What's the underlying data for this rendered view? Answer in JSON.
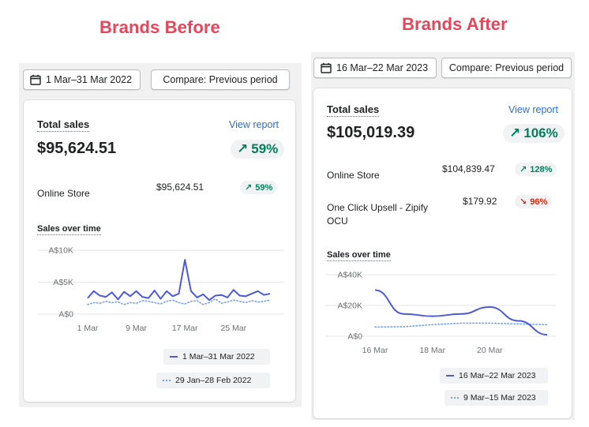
{
  "before": {
    "heading": "Brands Before",
    "date_range": "1 Mar–31 Mar 2022",
    "compare": "Compare: Previous period",
    "total_sales_label": "Total sales",
    "view_report": "View report",
    "total_amount": "$95,624.51",
    "total_change": "59%",
    "rows": [
      {
        "name": "Online Store",
        "value": "$95,624.51",
        "change": "59%",
        "direction": "up"
      }
    ],
    "chart_title": "Sales over time",
    "y_ticks": [
      "A$10K",
      "A$5K",
      "A$0"
    ],
    "x_ticks": [
      "1 Mar",
      "9 Mar",
      "17 Mar",
      "25 Mar"
    ],
    "legend_current": "1 Mar–31 Mar 2022",
    "legend_previous": "29 Jan–28 Feb 2022"
  },
  "after": {
    "heading": "Brands After",
    "date_range": "16 Mar–22 Mar 2023",
    "compare": "Compare: Previous period",
    "total_sales_label": "Total sales",
    "view_report": "View report",
    "total_amount": "$105,019.39",
    "total_change": "106%",
    "rows": [
      {
        "name": "Online Store",
        "value": "$104,839.47",
        "change": "128%",
        "direction": "up"
      },
      {
        "name": "One Click Upsell - Zipify OCU",
        "value": "$179.92",
        "change": "96%",
        "direction": "down"
      }
    ],
    "chart_title": "Sales over time",
    "y_ticks": [
      "A$40K",
      "A$20K",
      "A$0"
    ],
    "x_ticks": [
      "16 Mar",
      "18 Mar",
      "20 Mar"
    ],
    "legend_current": "16 Mar–22 Mar 2023",
    "legend_previous": "9 Mar–15 Mar 2023"
  },
  "chart_data": [
    {
      "type": "line",
      "title": "Sales over time",
      "xlabel": "",
      "ylabel": "",
      "ylim": [
        0,
        10000
      ],
      "x_tick_labels": [
        "1 Mar",
        "9 Mar",
        "17 Mar",
        "25 Mar"
      ],
      "x": [
        "1 Mar",
        "2 Mar",
        "3 Mar",
        "4 Mar",
        "5 Mar",
        "6 Mar",
        "7 Mar",
        "8 Mar",
        "9 Mar",
        "10 Mar",
        "11 Mar",
        "12 Mar",
        "13 Mar",
        "14 Mar",
        "15 Mar",
        "16 Mar",
        "17 Mar",
        "18 Mar",
        "19 Mar",
        "20 Mar",
        "21 Mar",
        "22 Mar",
        "23 Mar",
        "24 Mar",
        "25 Mar",
        "26 Mar",
        "27 Mar",
        "28 Mar",
        "29 Mar",
        "30 Mar",
        "31 Mar"
      ],
      "series": [
        {
          "name": "1 Mar–31 Mar 2022",
          "style": "solid",
          "values": [
            2500,
            3600,
            2900,
            2700,
            3400,
            2300,
            3500,
            2800,
            3600,
            2700,
            2500,
            3700,
            2400,
            3600,
            2800,
            3200,
            8500,
            3600,
            2600,
            3100,
            2200,
            2900,
            3000,
            2600,
            3800,
            2900,
            2800,
            3200,
            3600,
            3000,
            3200
          ]
        },
        {
          "name": "29 Jan–28 Feb 2022",
          "style": "dotted",
          "values": [
            1500,
            1800,
            1700,
            2000,
            1800,
            1900,
            1500,
            1800,
            1700,
            2100,
            2000,
            1800,
            1600,
            2000,
            2200,
            1800,
            1600,
            2000,
            2100,
            1500,
            1800,
            2400,
            1700,
            1900,
            2200,
            2000,
            1800,
            2100,
            1900,
            2000,
            2200
          ]
        }
      ]
    },
    {
      "type": "line",
      "title": "Sales over time",
      "xlabel": "",
      "ylabel": "",
      "ylim": [
        0,
        40000
      ],
      "x_tick_labels": [
        "16 Mar",
        "18 Mar",
        "20 Mar"
      ],
      "x": [
        "16 Mar",
        "17 Mar",
        "18 Mar",
        "19 Mar",
        "20 Mar",
        "21 Mar",
        "22 Mar"
      ],
      "series": [
        {
          "name": "16 Mar–22 Mar 2023",
          "style": "solid",
          "values": [
            30000,
            14500,
            13000,
            14500,
            19000,
            10000,
            1000
          ]
        },
        {
          "name": "9 Mar–15 Mar 2023",
          "style": "dotted",
          "values": [
            6000,
            6200,
            7500,
            8500,
            8500,
            8000,
            7500
          ]
        }
      ]
    }
  ],
  "colors": {
    "heading": "#e8455b",
    "link": "#2c6ecb",
    "up": "#007f5f",
    "down": "#d72c0d",
    "line_current": "#4b5bd6",
    "line_previous": "#7aa2e8"
  },
  "icons": {
    "calendar": "calendar-icon",
    "up": "arrow-up-right-icon",
    "down": "arrow-down-right-icon"
  }
}
